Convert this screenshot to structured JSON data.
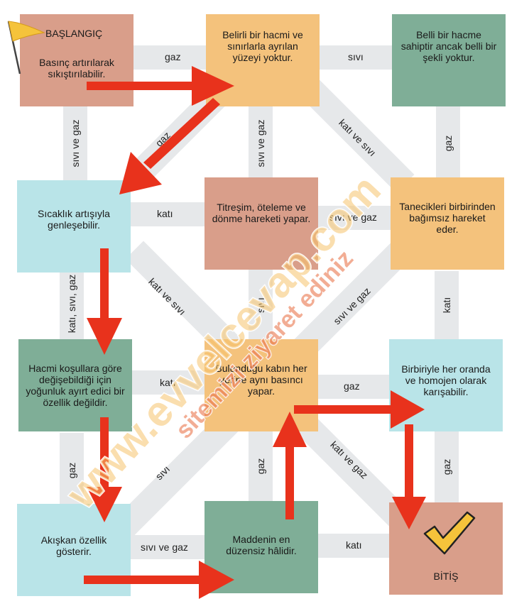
{
  "nodes": {
    "start": {
      "title": "BAŞLANGIÇ",
      "text": "Basınç artırılarak sıkıştırılabilir."
    },
    "n2": {
      "text": "Belirli bir hacmi ve sınırlarla ayrılan yüzeyi yoktur."
    },
    "n3": {
      "text": "Belli bir hacme sahiptir ancak belli bir şekli yoktur."
    },
    "n4": {
      "text": "Sıcaklık artışıyla genleşebilir."
    },
    "n5": {
      "text": "Titreşim, öteleme ve dönme hareketi yapar."
    },
    "n6": {
      "text": "Tanecikleri birbirinden bağımsız hareket eder."
    },
    "n7": {
      "text": "Hacmi koşullara göre değişebildiği için yoğunluk ayırt edici bir özellik değildir."
    },
    "n8": {
      "text": "Bulunduğu kabın her yerine aynı basıncı yapar."
    },
    "n9": {
      "text": "Birbiriyle her oranda ve homojen olarak karışabilir."
    },
    "n10": {
      "text": "Akışkan özellik gösterir."
    },
    "n11": {
      "text": "Maddenin en düzensiz hâlidir."
    },
    "end": {
      "title": "BİTİŞ"
    }
  },
  "connectors": {
    "h_1_2": "gaz",
    "h_2_3": "sıvı",
    "h_4_5": "katı",
    "h_5_6": "sıvı ve gaz",
    "h_7_8": "katı",
    "h_8_9": "gaz",
    "h_10_11": "sıvı ve gaz",
    "h_11_12": "katı",
    "v_1_4": "sıvı ve gaz",
    "v_2_5": "sıvı ve gaz",
    "v_3_6": "gaz",
    "v_4_7": "katı, sıvı, gaz",
    "v_5_8": "sıvı",
    "v_6_9": "katı",
    "v_7_10": "gaz",
    "v_8_11": "gaz",
    "v_9_12": "gaz",
    "d_2_4": "gaz",
    "d_2_6": "katı ve sıvı",
    "d_4_8": "katı ve sıvı",
    "d_6_8": "sıvı ve gaz",
    "d_8_10": "sıvı",
    "d_8_12": "katı ve gaz"
  },
  "watermark": {
    "line1": "www.evvelcevap.com",
    "line2": "sitemizi ziyaret ediniz"
  },
  "colors": {
    "arrow": "#e8321c",
    "salmon": "#d99e8a",
    "orange": "#f4c27c",
    "green": "#7fae97",
    "cyan": "#b9e4e8",
    "connector": "#e6e8ea",
    "flag": "#f5c33b",
    "check": "#f5c33b"
  }
}
